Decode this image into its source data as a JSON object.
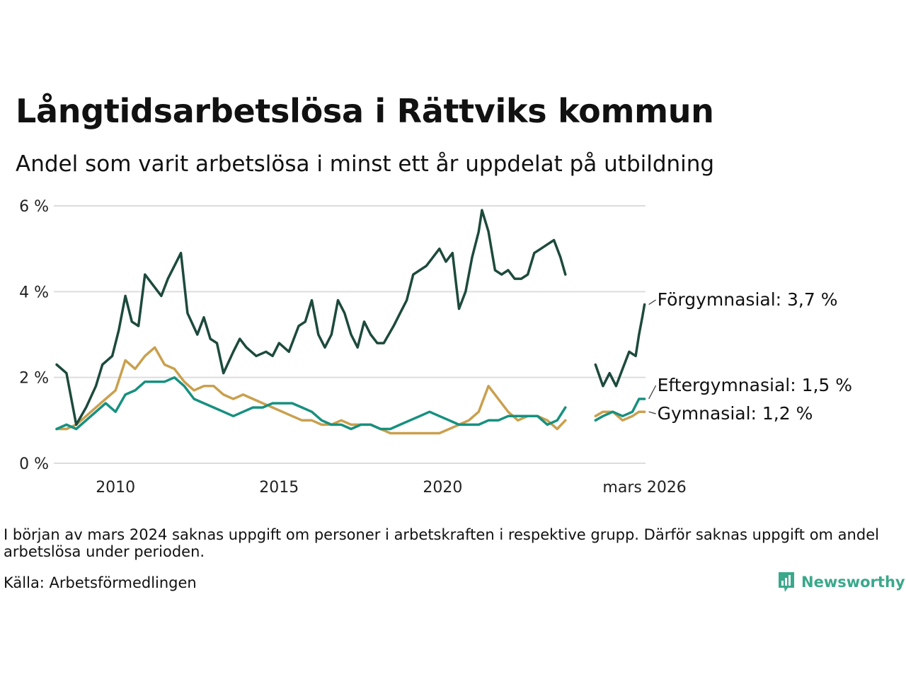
{
  "header": {
    "title": "Långtidsarbetslösa i Rättviks kommun",
    "subtitle": "Andel som varit arbetslösa i minst ett år uppdelat på utbildning"
  },
  "footer": {
    "note": "I början av mars 2024 saknas uppgift om personer i arbetskraften i respektive grupp. Därför saknas uppgift om andel arbetslösa under perioden.",
    "source": "Källa: Arbetsförmedlingen",
    "brand": "Newsworthy"
  },
  "colors": {
    "forgymnasial": "#1d4a3d",
    "eftergymnasial": "#17907f",
    "gymnasial": "#c9a04e",
    "grid": "#dddddd",
    "brand": "#3aa88b"
  },
  "chart_data": {
    "type": "line",
    "title": "Långtidsarbetslösa i Rättviks kommun",
    "xlabel": "",
    "ylabel": "",
    "x_range": [
      2008.2,
      2026.2
    ],
    "ylim": [
      0,
      6
    ],
    "y_ticks": [
      0,
      2,
      4,
      6
    ],
    "y_tick_labels": [
      "0 %",
      "2 %",
      "4 %",
      "6 %"
    ],
    "x_ticks": [
      2010,
      2015,
      2020,
      2026.17
    ],
    "x_tick_labels": [
      "2010",
      "2015",
      "2020",
      "mars 2026"
    ],
    "gap": [
      2023.75,
      2024.67
    ],
    "series": [
      {
        "name": "Förgymnasial",
        "key": "forgymnasial",
        "end_label": "Förgymnasial: 3,7 %",
        "x": [
          2008.2,
          2008.5,
          2008.8,
          2009.1,
          2009.4,
          2009.6,
          2009.9,
          2010.1,
          2010.3,
          2010.5,
          2010.7,
          2010.9,
          2011.1,
          2011.4,
          2011.6,
          2011.8,
          2012.0,
          2012.2,
          2012.5,
          2012.7,
          2012.9,
          2013.1,
          2013.3,
          2013.6,
          2013.8,
          2014.0,
          2014.3,
          2014.6,
          2014.8,
          2015.0,
          2015.3,
          2015.6,
          2015.8,
          2016.0,
          2016.2,
          2016.4,
          2016.6,
          2016.8,
          2017.0,
          2017.2,
          2017.4,
          2017.6,
          2017.8,
          2018.0,
          2018.2,
          2018.5,
          2018.7,
          2018.9,
          2019.1,
          2019.3,
          2019.5,
          2019.7,
          2019.9,
          2020.1,
          2020.3,
          2020.5,
          2020.7,
          2020.9,
          2021.1,
          2021.2,
          2021.4,
          2021.6,
          2021.8,
          2022.0,
          2022.2,
          2022.4,
          2022.6,
          2022.8,
          2023.0,
          2023.2,
          2023.4,
          2023.6,
          2023.75,
          2024.67,
          2024.9,
          2025.1,
          2025.3,
          2025.5,
          2025.7,
          2025.9,
          2026.0,
          2026.1,
          2026.17
        ],
        "values": [
          2.3,
          2.1,
          0.9,
          1.3,
          1.8,
          2.3,
          2.5,
          3.1,
          3.9,
          3.3,
          3.2,
          4.4,
          4.2,
          3.9,
          4.3,
          4.6,
          4.9,
          3.5,
          3.0,
          3.4,
          2.9,
          2.8,
          2.1,
          2.6,
          2.9,
          2.7,
          2.5,
          2.6,
          2.5,
          2.8,
          2.6,
          3.2,
          3.3,
          3.8,
          3.0,
          2.7,
          3.0,
          3.8,
          3.5,
          3.0,
          2.7,
          3.3,
          3.0,
          2.8,
          2.8,
          3.2,
          3.5,
          3.8,
          4.4,
          4.5,
          4.6,
          4.8,
          5.0,
          4.7,
          4.9,
          3.6,
          4.0,
          4.8,
          5.4,
          5.9,
          5.4,
          4.5,
          4.4,
          4.5,
          4.3,
          4.3,
          4.4,
          4.9,
          5.0,
          5.1,
          5.2,
          4.8,
          4.4,
          2.3,
          1.8,
          2.1,
          1.8,
          2.2,
          2.6,
          2.5,
          3.0,
          3.4,
          3.7
        ]
      },
      {
        "name": "Eftergymnasial",
        "key": "eftergymnasial",
        "end_label": "Eftergymnasial: 1,5 %",
        "x": [
          2008.2,
          2008.5,
          2008.8,
          2009.1,
          2009.4,
          2009.7,
          2010.0,
          2010.3,
          2010.6,
          2010.9,
          2011.2,
          2011.5,
          2011.8,
          2012.1,
          2012.4,
          2012.7,
          2013.0,
          2013.3,
          2013.6,
          2013.9,
          2014.2,
          2014.5,
          2014.8,
          2015.1,
          2015.4,
          2015.7,
          2016.0,
          2016.3,
          2016.6,
          2016.9,
          2017.2,
          2017.5,
          2017.8,
          2018.1,
          2018.4,
          2018.7,
          2019.0,
          2019.3,
          2019.6,
          2019.9,
          2020.2,
          2020.5,
          2020.8,
          2021.1,
          2021.4,
          2021.7,
          2022.0,
          2022.3,
          2022.6,
          2022.9,
          2023.2,
          2023.5,
          2023.75,
          2024.67,
          2024.9,
          2025.2,
          2025.5,
          2025.8,
          2026.0,
          2026.17
        ],
        "values": [
          0.8,
          0.9,
          0.8,
          1.0,
          1.2,
          1.4,
          1.2,
          1.6,
          1.7,
          1.9,
          1.9,
          1.9,
          2.0,
          1.8,
          1.5,
          1.4,
          1.3,
          1.2,
          1.1,
          1.2,
          1.3,
          1.3,
          1.4,
          1.4,
          1.4,
          1.3,
          1.2,
          1.0,
          0.9,
          0.9,
          0.8,
          0.9,
          0.9,
          0.8,
          0.8,
          0.9,
          1.0,
          1.1,
          1.2,
          1.1,
          1.0,
          0.9,
          0.9,
          0.9,
          1.0,
          1.0,
          1.1,
          1.1,
          1.1,
          1.1,
          0.9,
          1.0,
          1.3,
          1.0,
          1.1,
          1.2,
          1.1,
          1.2,
          1.5,
          1.5
        ]
      },
      {
        "name": "Gymnasial",
        "key": "gymnasial",
        "end_label": "Gymnasial: 1,2 %",
        "x": [
          2008.2,
          2008.5,
          2008.8,
          2009.1,
          2009.4,
          2009.7,
          2010.0,
          2010.3,
          2010.6,
          2010.9,
          2011.2,
          2011.5,
          2011.8,
          2012.1,
          2012.4,
          2012.7,
          2013.0,
          2013.3,
          2013.6,
          2013.9,
          2014.2,
          2014.5,
          2014.8,
          2015.1,
          2015.4,
          2015.7,
          2016.0,
          2016.3,
          2016.6,
          2016.9,
          2017.2,
          2017.5,
          2017.8,
          2018.1,
          2018.4,
          2018.7,
          2019.0,
          2019.3,
          2019.6,
          2019.9,
          2020.2,
          2020.5,
          2020.8,
          2021.1,
          2021.4,
          2021.7,
          2022.0,
          2022.3,
          2022.6,
          2022.9,
          2023.2,
          2023.5,
          2023.75,
          2024.67,
          2024.9,
          2025.2,
          2025.5,
          2025.8,
          2026.0,
          2026.17
        ],
        "values": [
          0.8,
          0.8,
          0.9,
          1.1,
          1.3,
          1.5,
          1.7,
          2.4,
          2.2,
          2.5,
          2.7,
          2.3,
          2.2,
          1.9,
          1.7,
          1.8,
          1.8,
          1.6,
          1.5,
          1.6,
          1.5,
          1.4,
          1.3,
          1.2,
          1.1,
          1.0,
          1.0,
          0.9,
          0.9,
          1.0,
          0.9,
          0.9,
          0.9,
          0.8,
          0.7,
          0.7,
          0.7,
          0.7,
          0.7,
          0.7,
          0.8,
          0.9,
          1.0,
          1.2,
          1.8,
          1.5,
          1.2,
          1.0,
          1.1,
          1.1,
          1.0,
          0.8,
          1.0,
          1.1,
          1.2,
          1.2,
          1.0,
          1.1,
          1.2,
          1.2
        ]
      }
    ]
  }
}
